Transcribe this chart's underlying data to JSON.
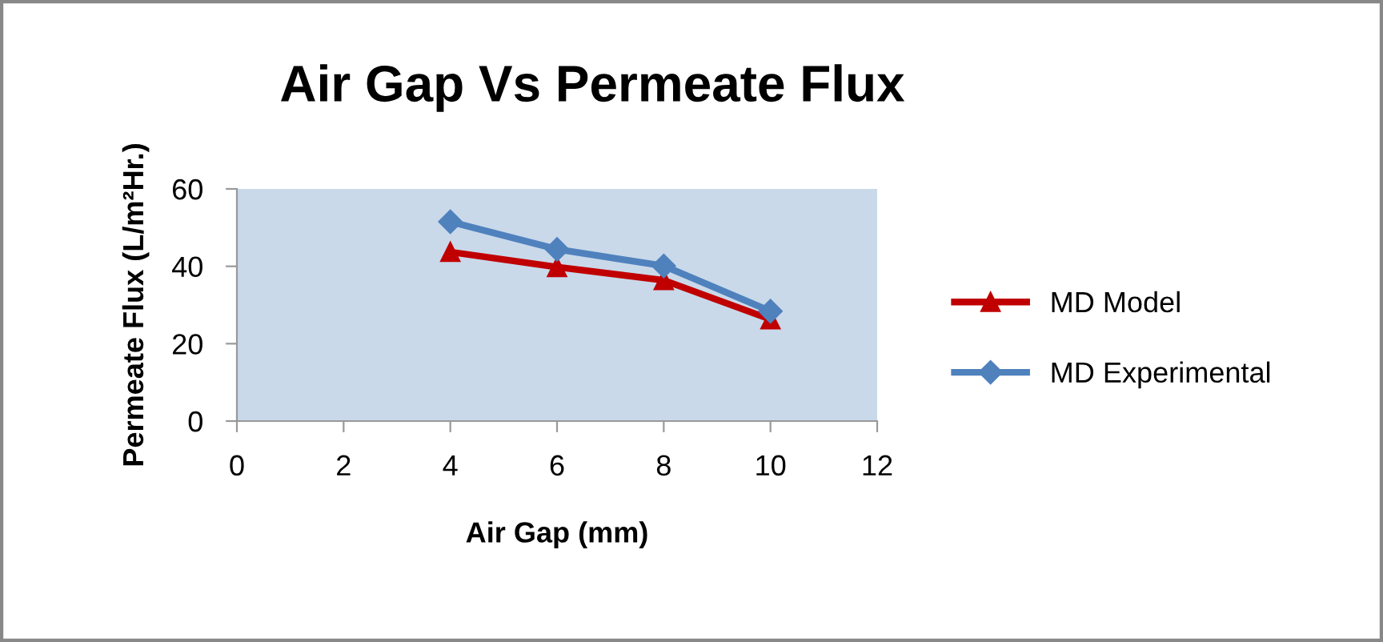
{
  "chart_data": {
    "type": "line",
    "title": "Air Gap Vs Permeate Flux",
    "xlabel": "Air Gap (mm)",
    "ylabel": "Permeate Flux (L/m²Hr.)",
    "x": [
      4,
      6,
      8,
      10
    ],
    "series": [
      {
        "name": "MD Model",
        "color": "#c00000",
        "marker": "triangle",
        "values": [
          43.7,
          39.8,
          36.4,
          26.3
        ]
      },
      {
        "name": "MD Experimental",
        "color": "#4f81bd",
        "marker": "diamond",
        "values": [
          51.5,
          44.4,
          40.1,
          28.4
        ]
      }
    ],
    "xlim": [
      0,
      12
    ],
    "xticks": [
      0,
      2,
      4,
      6,
      8,
      10,
      12
    ],
    "ylim": [
      0,
      60
    ],
    "yticks": [
      0,
      20,
      40,
      60
    ],
    "grid": false,
    "legend": "right",
    "line_style": "solid"
  }
}
